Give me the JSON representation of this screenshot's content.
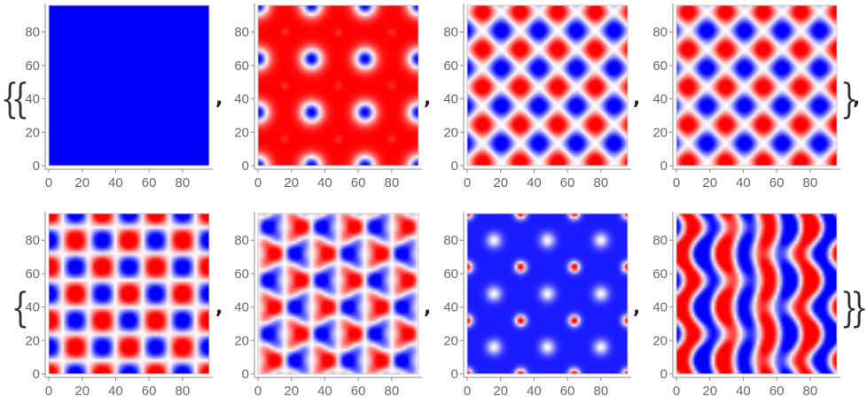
{
  "colors": {
    "positive": "#ff0000",
    "negative": "#0000ff",
    "zero": "#ffffff",
    "axis": "#8c8c8c",
    "text": "#6a6a6a"
  },
  "brackets": {
    "outer_open": "{",
    "inner_open": "{",
    "inner_close": "}",
    "outer_close": "}",
    "separator": ","
  },
  "chart_data": [
    {
      "type": "heatmap",
      "row": 1,
      "col": 1,
      "pattern": "uniform",
      "color_scale": [
        "#0000ff",
        "#ffffff",
        "#ff0000"
      ],
      "x_ticks": [
        0,
        20,
        40,
        60,
        80
      ],
      "y_ticks": [
        0,
        20,
        40,
        60,
        80
      ],
      "xlim": [
        0,
        96
      ],
      "ylim": [
        0,
        96
      ]
    },
    {
      "type": "heatmap",
      "row": 1,
      "col": 2,
      "pattern": "spots",
      "color_scale": [
        "#0000ff",
        "#ffffff",
        "#ff0000"
      ],
      "x_ticks": [
        0,
        20,
        40,
        60,
        80
      ],
      "y_ticks": [
        0,
        20,
        40,
        60,
        80
      ],
      "xlim": [
        0,
        96
      ],
      "ylim": [
        0,
        96
      ]
    },
    {
      "type": "heatmap",
      "row": 1,
      "col": 3,
      "pattern": "diagonal-checker",
      "color_scale": [
        "#0000ff",
        "#ffffff",
        "#ff0000"
      ],
      "x_ticks": [
        0,
        20,
        40,
        60,
        80
      ],
      "y_ticks": [
        0,
        20,
        40,
        60,
        80
      ],
      "xlim": [
        0,
        96
      ],
      "ylim": [
        0,
        96
      ]
    },
    {
      "type": "heatmap",
      "row": 1,
      "col": 4,
      "pattern": "diagonal-checker-mirror",
      "color_scale": [
        "#0000ff",
        "#ffffff",
        "#ff0000"
      ],
      "x_ticks": [
        0,
        20,
        40,
        60,
        80
      ],
      "y_ticks": [
        0,
        20,
        40,
        60,
        80
      ],
      "xlim": [
        0,
        96
      ],
      "ylim": [
        0,
        96
      ]
    },
    {
      "type": "heatmap",
      "row": 2,
      "col": 1,
      "pattern": "diamonds",
      "color_scale": [
        "#0000ff",
        "#ffffff",
        "#ff0000"
      ],
      "x_ticks": [
        0,
        20,
        40,
        60,
        80
      ],
      "y_ticks": [
        0,
        20,
        40,
        60,
        80
      ],
      "xlim": [
        0,
        96
      ],
      "ylim": [
        0,
        96
      ]
    },
    {
      "type": "heatmap",
      "row": 2,
      "col": 2,
      "pattern": "quadrupoles",
      "color_scale": [
        "#0000ff",
        "#ffffff",
        "#ff0000"
      ],
      "x_ticks": [
        0,
        20,
        40,
        60,
        80
      ],
      "y_ticks": [
        0,
        20,
        40,
        60,
        80
      ],
      "xlim": [
        0,
        96
      ],
      "ylim": [
        0,
        96
      ]
    },
    {
      "type": "heatmap",
      "row": 2,
      "col": 3,
      "pattern": "rings",
      "color_scale": [
        "#0000ff",
        "#ffffff",
        "#ff0000"
      ],
      "x_ticks": [
        0,
        20,
        40,
        60,
        80
      ],
      "y_ticks": [
        0,
        20,
        40,
        60,
        80
      ],
      "xlim": [
        0,
        96
      ],
      "ylim": [
        0,
        96
      ]
    },
    {
      "type": "heatmap",
      "row": 2,
      "col": 4,
      "pattern": "stripes",
      "color_scale": [
        "#0000ff",
        "#ffffff",
        "#ff0000"
      ],
      "x_ticks": [
        0,
        20,
        40,
        60,
        80
      ],
      "y_ticks": [
        0,
        20,
        40,
        60,
        80
      ],
      "xlim": [
        0,
        96
      ],
      "ylim": [
        0,
        96
      ]
    }
  ]
}
